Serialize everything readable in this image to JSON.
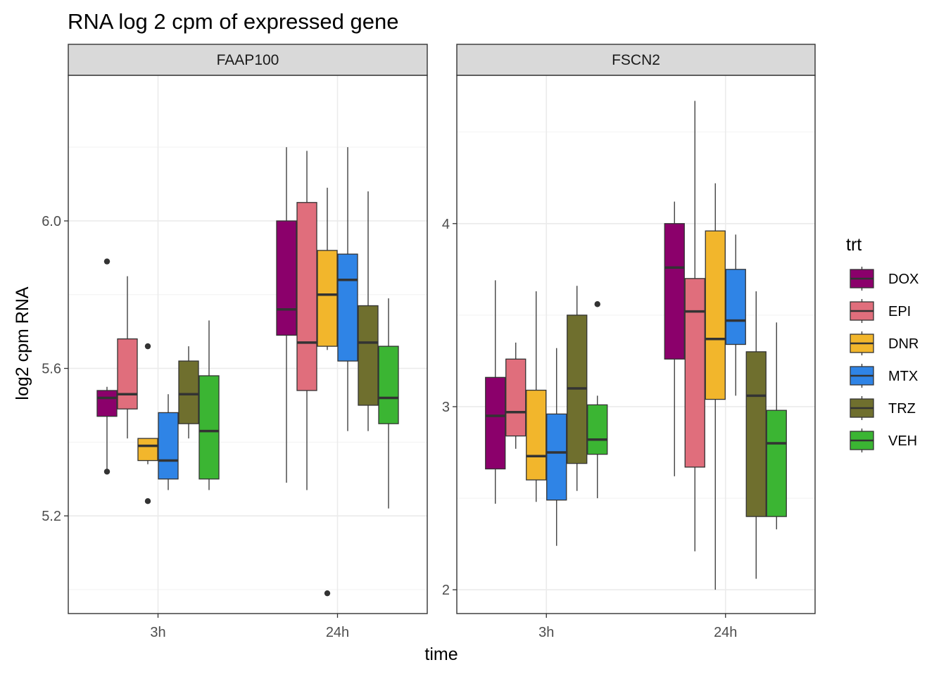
{
  "chart_data": {
    "type": "boxplot",
    "title": "RNA log 2 cpm of expressed gene",
    "xlabel": "time",
    "ylabel": "log2 cpm RNA",
    "categories": [
      "3h",
      "24h"
    ],
    "legend": {
      "title": "trt",
      "position": "right",
      "items": [
        {
          "name": "DOX",
          "color": "#8B006B"
        },
        {
          "name": "EPI",
          "color": "#E06E7C"
        },
        {
          "name": "DNR",
          "color": "#F2B62C"
        },
        {
          "name": "MTX",
          "color": "#2F84E6"
        },
        {
          "name": "TRZ",
          "color": "#6F6F2E"
        },
        {
          "name": "VEH",
          "color": "#3BB533"
        }
      ]
    },
    "grid": true,
    "panels": [
      {
        "name": "FAAP100",
        "ylim": [
          4.935,
          6.395
        ],
        "yticks": [
          5.2,
          5.6,
          6.0
        ],
        "ytick_labels": [
          "5.2",
          "5.6",
          "6.0"
        ],
        "groups": {
          "3h": [
            {
              "trt": "DOX",
              "min": 5.32,
              "q1": 5.47,
              "median": 5.52,
              "q3": 5.54,
              "max": 5.55,
              "outliers": [
                5.89,
                5.32
              ]
            },
            {
              "trt": "EPI",
              "min": 5.41,
              "q1": 5.49,
              "median": 5.53,
              "q3": 5.68,
              "max": 5.85,
              "outliers": []
            },
            {
              "trt": "DNR",
              "min": 5.34,
              "q1": 5.35,
              "median": 5.39,
              "q3": 5.41,
              "max": 5.41,
              "outliers": [
                5.66,
                5.24
              ]
            },
            {
              "trt": "MTX",
              "min": 5.27,
              "q1": 5.3,
              "median": 5.35,
              "q3": 5.48,
              "max": 5.53,
              "outliers": []
            },
            {
              "trt": "TRZ",
              "min": 5.41,
              "q1": 5.45,
              "median": 5.53,
              "q3": 5.62,
              "max": 5.66,
              "outliers": []
            },
            {
              "trt": "VEH",
              "min": 5.27,
              "q1": 5.3,
              "median": 5.43,
              "q3": 5.58,
              "max": 5.73,
              "outliers": []
            }
          ],
          "24h": [
            {
              "trt": "DOX",
              "min": 5.29,
              "q1": 5.69,
              "median": 5.76,
              "q3": 6.0,
              "max": 6.2,
              "outliers": []
            },
            {
              "trt": "EPI",
              "min": 5.27,
              "q1": 5.54,
              "median": 5.67,
              "q3": 6.05,
              "max": 6.19,
              "outliers": []
            },
            {
              "trt": "DNR",
              "min": 5.65,
              "q1": 5.66,
              "median": 5.8,
              "q3": 5.92,
              "max": 6.09,
              "outliers": [
                4.99
              ]
            },
            {
              "trt": "MTX",
              "min": 5.43,
              "q1": 5.62,
              "median": 5.84,
              "q3": 5.91,
              "max": 6.2,
              "outliers": []
            },
            {
              "trt": "TRZ",
              "min": 5.43,
              "q1": 5.5,
              "median": 5.67,
              "q3": 5.77,
              "max": 6.08,
              "outliers": []
            },
            {
              "trt": "VEH",
              "min": 5.22,
              "q1": 5.45,
              "median": 5.52,
              "q3": 5.66,
              "max": 5.79,
              "outliers": []
            }
          ]
        }
      },
      {
        "name": "FSCN2",
        "ylim": [
          1.87,
          4.81
        ],
        "yticks": [
          2,
          3,
          4
        ],
        "ytick_labels": [
          "2",
          "3",
          "4"
        ],
        "groups": {
          "3h": [
            {
              "trt": "DOX",
              "min": 2.47,
              "q1": 2.66,
              "median": 2.95,
              "q3": 3.16,
              "max": 3.69,
              "outliers": []
            },
            {
              "trt": "EPI",
              "min": 2.77,
              "q1": 2.84,
              "median": 2.97,
              "q3": 3.26,
              "max": 3.35,
              "outliers": []
            },
            {
              "trt": "DNR",
              "min": 2.48,
              "q1": 2.6,
              "median": 2.73,
              "q3": 3.09,
              "max": 3.63,
              "outliers": []
            },
            {
              "trt": "MTX",
              "min": 2.24,
              "q1": 2.49,
              "median": 2.75,
              "q3": 2.96,
              "max": 3.32,
              "outliers": []
            },
            {
              "trt": "TRZ",
              "min": 2.54,
              "q1": 2.69,
              "median": 3.1,
              "q3": 3.5,
              "max": 3.66,
              "outliers": []
            },
            {
              "trt": "VEH",
              "min": 2.5,
              "q1": 2.74,
              "median": 2.82,
              "q3": 3.01,
              "max": 3.06,
              "outliers": [
                3.56
              ]
            }
          ],
          "24h": [
            {
              "trt": "DOX",
              "min": 2.62,
              "q1": 3.26,
              "median": 3.76,
              "q3": 4.0,
              "max": 4.12,
              "outliers": []
            },
            {
              "trt": "EPI",
              "min": 2.21,
              "q1": 2.67,
              "median": 3.52,
              "q3": 3.7,
              "max": 4.67,
              "outliers": []
            },
            {
              "trt": "DNR",
              "min": 2.0,
              "q1": 3.04,
              "median": 3.37,
              "q3": 3.96,
              "max": 4.22,
              "outliers": []
            },
            {
              "trt": "MTX",
              "min": 3.06,
              "q1": 3.34,
              "median": 3.47,
              "q3": 3.75,
              "max": 3.94,
              "outliers": []
            },
            {
              "trt": "TRZ",
              "min": 2.06,
              "q1": 2.4,
              "median": 3.06,
              "q3": 3.3,
              "max": 3.63,
              "outliers": []
            },
            {
              "trt": "VEH",
              "min": 2.33,
              "q1": 2.4,
              "median": 2.8,
              "q3": 2.98,
              "max": 3.46,
              "outliers": []
            }
          ]
        }
      }
    ]
  }
}
